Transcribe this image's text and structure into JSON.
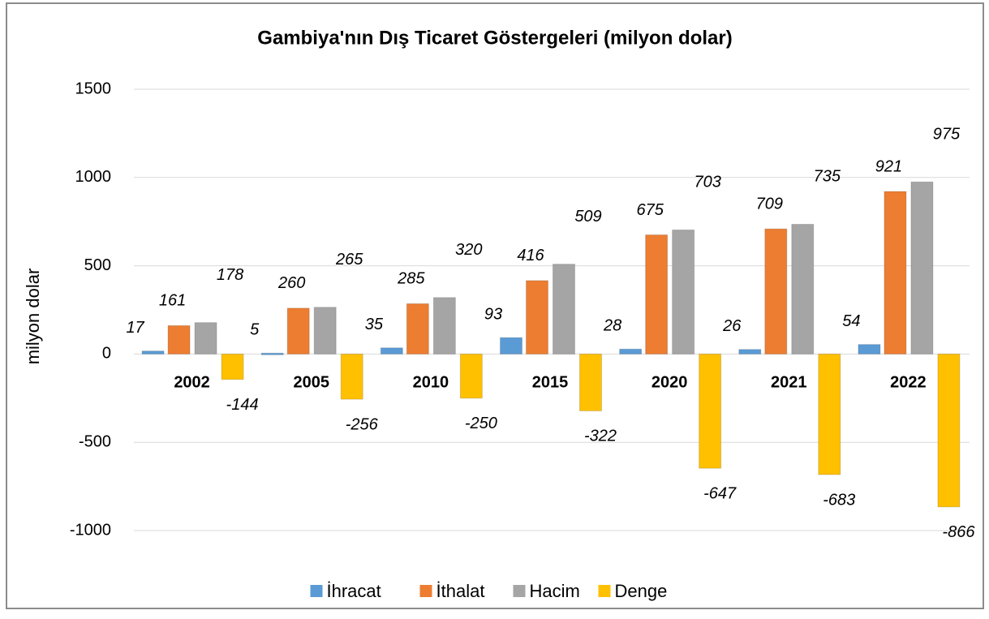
{
  "chart_data": {
    "type": "bar",
    "title": "Gambiya'nın Dış Ticaret Göstergeleri  (milyon dolar)",
    "y_label": "milyon dolar",
    "categories": [
      "2002",
      "2005",
      "2010",
      "2015",
      "2020",
      "2021",
      "2022"
    ],
    "series": [
      {
        "name": "İhracat",
        "color": "#5b9bd5",
        "values": [
          17,
          5,
          35,
          93,
          28,
          26,
          54
        ]
      },
      {
        "name": "İthalat",
        "color": "#ed7d31",
        "values": [
          161,
          260,
          285,
          416,
          675,
          709,
          921
        ]
      },
      {
        "name": "Hacim",
        "color": "#a5a5a5",
        "values": [
          178,
          265,
          320,
          509,
          703,
          735,
          975
        ]
      },
      {
        "name": "Denge",
        "color": "#ffc000",
        "values": [
          -144,
          -256,
          -250,
          -322,
          -647,
          -683,
          -866
        ]
      }
    ],
    "ylim": [
      -1000,
      1500
    ],
    "yticks": [
      -1000,
      -500,
      0,
      500,
      1000,
      1500
    ],
    "grid": true,
    "legend": "bottom"
  }
}
